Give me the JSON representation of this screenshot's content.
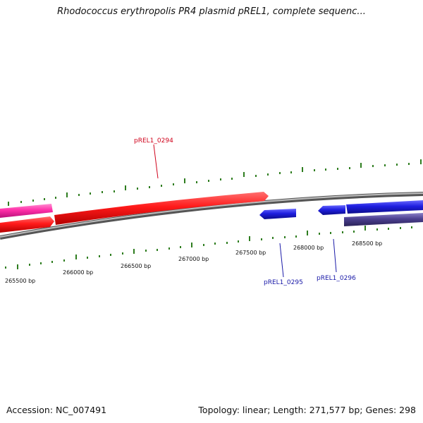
{
  "title": "Rhodococcus erythropolis PR4 plasmid pREL1, complete sequenc...",
  "footer": {
    "accession": "Accession: NC_007491",
    "summary": "Topology: linear; Length: 271,577 bp; Genes: 298"
  },
  "ruler": {
    "labels": [
      "265500 bp",
      "266000 bp",
      "266500 bp",
      "267000 bp",
      "267500 bp",
      "268000 bp",
      "268500 bp"
    ],
    "tick_color": "#2e7d1f"
  },
  "genes": [
    {
      "name": "pREL1_0294",
      "label_color": "#d0021b",
      "fill": "#ff1a1a"
    },
    {
      "name": "pREL1_0295",
      "label_color": "#1a1aa8",
      "fill": "#1f1fe0"
    },
    {
      "name": "pREL1_0296",
      "label_color": "#1a1aa8",
      "fill": "#1f1fe0"
    }
  ],
  "other_features": [
    {
      "kind": "pink-feature",
      "fill": "#ff2fa8"
    },
    {
      "kind": "red-feature-left",
      "fill": "#ff1a1a"
    },
    {
      "kind": "navy-feature",
      "fill": "#4b3f8f"
    }
  ]
}
